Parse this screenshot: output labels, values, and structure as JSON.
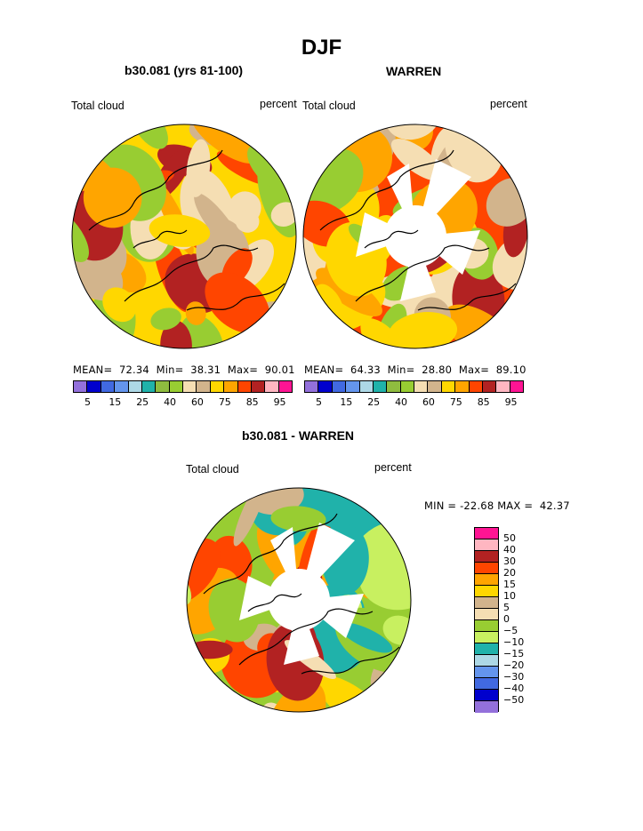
{
  "title": "DJF",
  "panels": [
    {
      "subtitle": "b30.081 (yrs 81-100)",
      "left_label": "Total cloud",
      "right_label": "percent",
      "stats": "MEAN=  72.34  Min=  38.31  Max=  90.01"
    },
    {
      "subtitle": "WARREN",
      "left_label": "Total cloud",
      "right_label": "percent",
      "stats": "MEAN=  64.33  Min=  28.80  Max=  89.10"
    }
  ],
  "colorbar_top": {
    "colors": [
      "#9370db",
      "#0000cd",
      "#4169e1",
      "#6495ed",
      "#add8e6",
      "#20b2aa",
      "#8fbc3f",
      "#98cd32",
      "#f5deb3",
      "#d2b48c",
      "#ffd700",
      "#ffa500",
      "#ff4500",
      "#b22222",
      "#ffb6c1",
      "#ff1493"
    ],
    "ticks": [
      "5",
      "15",
      "25",
      "40",
      "60",
      "75",
      "85",
      "95"
    ]
  },
  "diff": {
    "subtitle": "b30.081 - WARREN",
    "left_label": "Total cloud",
    "right_label": "percent",
    "minmax": "MIN = -22.68 MAX =  42.37",
    "colors": [
      "#ff1493",
      "#ffb6c1",
      "#b22222",
      "#ff4500",
      "#ffa500",
      "#ffd700",
      "#d2b48c",
      "#f5deb3",
      "#98cd32",
      "#c8f060",
      "#20b2aa",
      "#add8e6",
      "#6495ed",
      "#4169e1",
      "#0000cd",
      "#9370db"
    ],
    "ticks": [
      "50",
      "40",
      "30",
      "20",
      "15",
      "10",
      "5",
      "0",
      "−5",
      "−10",
      "−15",
      "−20",
      "−30",
      "−40",
      "−50"
    ]
  },
  "map_palettes": {
    "model": [
      "#ffd700",
      "#ffa500",
      "#d2b48c",
      "#ff4500",
      "#f5deb3",
      "#b22222",
      "#98cd32"
    ],
    "obs": [
      "#ff4500",
      "#ffa500",
      "#ffd700",
      "#d2b48c",
      "#f5deb3",
      "#98cd32",
      "#b22222"
    ],
    "diff": [
      "#98cd32",
      "#d2b48c",
      "#ffa500",
      "#ffd700",
      "#ff4500",
      "#f5deb3",
      "#20b2aa",
      "#b22222",
      "#c8f060"
    ]
  }
}
